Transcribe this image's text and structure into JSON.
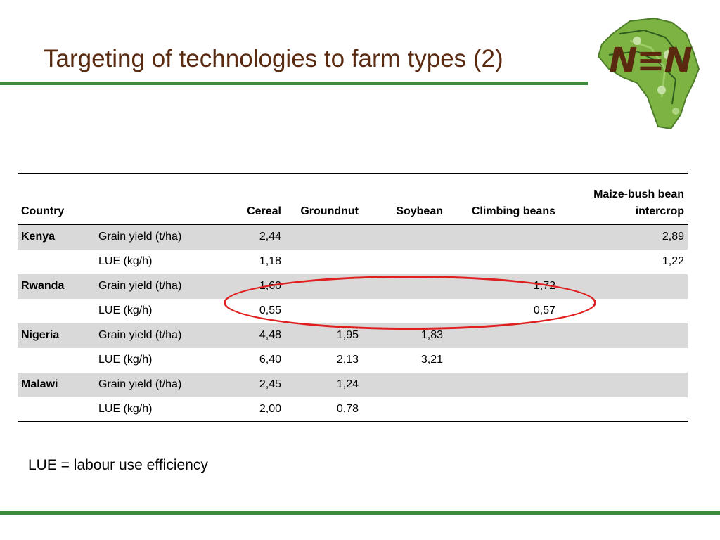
{
  "slide": {
    "title": "Targeting of technologies to farm types (2)",
    "logo_text": "N≡N",
    "note": "LUE = labour use efficiency"
  },
  "table": {
    "headers": [
      "Country",
      "",
      "Cereal",
      "Groundnut",
      "Soybean",
      "Climbing beans",
      "Maize-bush bean intercrop"
    ],
    "header_intercrop_line1": "Maize-bush bean",
    "header_intercrop_line2": "intercrop",
    "rows": [
      {
        "country": "Kenya",
        "measure": "Grain yield (t/ha)",
        "cereal": "2,44",
        "groundnut": "",
        "soybean": "",
        "climbing": "",
        "intercrop": "2,89"
      },
      {
        "country": "",
        "measure": "LUE (kg/h)",
        "cereal": "1,18",
        "groundnut": "",
        "soybean": "",
        "climbing": "",
        "intercrop": "1,22"
      },
      {
        "country": "Rwanda",
        "measure": "Grain yield (t/ha)",
        "cereal": "1,60",
        "groundnut": "",
        "soybean": "",
        "climbing": "1,72",
        "intercrop": ""
      },
      {
        "country": "",
        "measure": "LUE (kg/h)",
        "cereal": "0,55",
        "groundnut": "",
        "soybean": "",
        "climbing": "0,57",
        "intercrop": ""
      },
      {
        "country": "Nigeria",
        "measure": "Grain yield (t/ha)",
        "cereal": "4,48",
        "groundnut": "1,95",
        "soybean": "1,83",
        "climbing": "",
        "intercrop": ""
      },
      {
        "country": "",
        "measure": "LUE (kg/h)",
        "cereal": "6,40",
        "groundnut": "2,13",
        "soybean": "3,21",
        "climbing": "",
        "intercrop": ""
      },
      {
        "country": "Malawi",
        "measure": "Grain yield (t/ha)",
        "cereal": "2,45",
        "groundnut": "1,24",
        "soybean": "",
        "climbing": "",
        "intercrop": ""
      },
      {
        "country": "",
        "measure": "LUE (kg/h)",
        "cereal": "2,00",
        "groundnut": "0,78",
        "soybean": "",
        "climbing": "",
        "intercrop": ""
      }
    ]
  },
  "colors": {
    "accent_green": "#3f8a3a",
    "title_brown": "#5a2a10",
    "row_shade": "#d9d9d9",
    "highlight_red": "#e02020"
  }
}
